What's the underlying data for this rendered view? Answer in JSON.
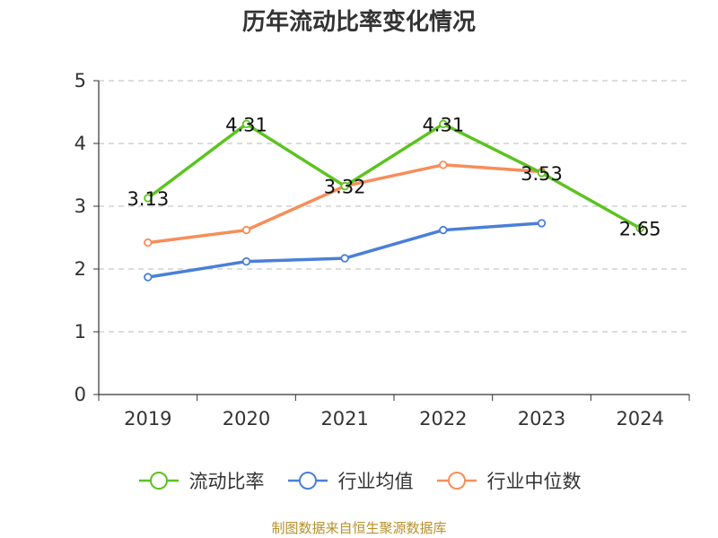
{
  "title": "历年流动比率变化情况",
  "source": "制图数据来自恒生聚源数据库",
  "chart_data": {
    "type": "line",
    "categories": [
      "2019",
      "2020",
      "2021",
      "2022",
      "2023",
      "2024"
    ],
    "ylim": [
      0,
      5
    ],
    "yticks": [
      0,
      1,
      2,
      3,
      4,
      5
    ],
    "grid": true,
    "legend_position": "bottom",
    "series": [
      {
        "name": "流动比率",
        "color": "#5cc31f",
        "values": [
          3.13,
          4.31,
          3.32,
          4.31,
          3.53,
          2.65
        ],
        "labels": [
          "3.13",
          "4.31",
          "3.32",
          "4.31",
          "3.53",
          "2.65"
        ]
      },
      {
        "name": "行业均值",
        "color": "#4a7fd8",
        "values": [
          1.87,
          2.12,
          2.17,
          2.62,
          2.73,
          null
        ]
      },
      {
        "name": "行业中位数",
        "color": "#f78d5a",
        "values": [
          2.42,
          2.62,
          3.32,
          3.66,
          3.55,
          null
        ]
      }
    ]
  }
}
